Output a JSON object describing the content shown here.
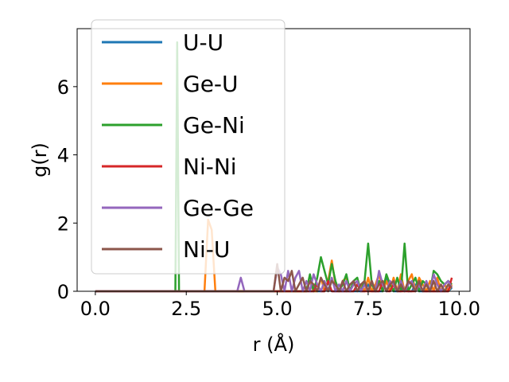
{
  "chart_data": {
    "type": "line",
    "xlabel": "r (Å)",
    "ylabel": "g(r)",
    "xlim": [
      -0.5,
      10.3
    ],
    "ylim": [
      0,
      7.7
    ],
    "xticks": [
      0.0,
      2.5,
      5.0,
      7.5,
      10.0
    ],
    "xtick_labels": [
      "0.0",
      "2.5",
      "5.0",
      "7.5",
      "10.0"
    ],
    "yticks": [
      0,
      2,
      4,
      6
    ],
    "ytick_labels": [
      "0",
      "2",
      "4",
      "6"
    ],
    "legend_position": "upper-left",
    "grid": false,
    "x": [
      0.0,
      0.5,
      1.0,
      1.5,
      2.0,
      2.1,
      2.2,
      2.25,
      2.3,
      2.4,
      2.5,
      2.6,
      2.7,
      2.8,
      2.9,
      3.0,
      3.1,
      3.2,
      3.3,
      3.4,
      3.5,
      3.6,
      3.7,
      3.8,
      3.9,
      4.0,
      4.1,
      4.2,
      4.3,
      4.4,
      4.5,
      4.6,
      4.7,
      4.8,
      4.9,
      5.0,
      5.1,
      5.2,
      5.3,
      5.4,
      5.5,
      5.6,
      5.7,
      5.8,
      5.9,
      6.0,
      6.1,
      6.2,
      6.3,
      6.4,
      6.5,
      6.6,
      6.7,
      6.8,
      6.9,
      7.0,
      7.1,
      7.2,
      7.3,
      7.4,
      7.5,
      7.6,
      7.7,
      7.8,
      7.9,
      8.0,
      8.1,
      8.2,
      8.3,
      8.4,
      8.5,
      8.6,
      8.7,
      8.8,
      8.9,
      9.0,
      9.1,
      9.2,
      9.3,
      9.4,
      9.5,
      9.6,
      9.7,
      9.8
    ],
    "series": [
      {
        "name": "U-U",
        "color": "#1f77b4",
        "values": [
          0,
          0,
          0,
          0,
          0,
          0,
          0,
          0,
          0,
          0,
          0,
          0,
          0,
          0,
          0,
          0,
          0,
          0,
          0,
          0,
          0,
          0,
          0,
          0,
          0,
          0,
          0,
          0,
          0,
          0,
          0,
          0,
          0,
          0,
          0,
          0,
          0,
          0,
          0,
          0,
          0,
          0,
          0,
          0,
          0,
          0,
          0,
          0,
          0,
          0.1,
          0,
          0,
          0,
          0,
          0,
          0,
          0,
          0,
          0,
          0,
          0.2,
          0,
          0,
          0,
          0,
          0.4,
          0.2,
          0,
          0,
          0,
          0.1,
          0,
          0,
          0.2,
          0,
          0,
          0,
          0,
          0,
          0,
          0,
          0,
          0,
          0.1
        ]
      },
      {
        "name": "Ge-U",
        "color": "#ff7f0e",
        "values": [
          0,
          0,
          0,
          0,
          0,
          0,
          0,
          0,
          0,
          0,
          0,
          0,
          0,
          0,
          0,
          0,
          2.1,
          1.8,
          0,
          0,
          0,
          0,
          0,
          0,
          0,
          0,
          0,
          0,
          0,
          0,
          0,
          0,
          0,
          0,
          0,
          0,
          0,
          0,
          0,
          0,
          0,
          0,
          0,
          0,
          0.3,
          0,
          0,
          0.4,
          0,
          0.3,
          0.9,
          0.2,
          0,
          0.3,
          0.4,
          0,
          0.3,
          0,
          0.2,
          0,
          0.4,
          0,
          0.2,
          0.5,
          0,
          0.3,
          0,
          0.4,
          0,
          0.5,
          0,
          0.3,
          0.5,
          0,
          0.4,
          0.2,
          0,
          0.3,
          0,
          0.4,
          0,
          0.2,
          0,
          0.2
        ]
      },
      {
        "name": "Ge-Ni",
        "color": "#2ca02c",
        "values": [
          0,
          0,
          0,
          0,
          0,
          0,
          0,
          7.3,
          0,
          0,
          0,
          0,
          0,
          0,
          0,
          0,
          0,
          0,
          0,
          0,
          0,
          0,
          0,
          0,
          0,
          0,
          0,
          0,
          0,
          0,
          0,
          0,
          0,
          0,
          0,
          0,
          0,
          0,
          0,
          0,
          0,
          0,
          0,
          0,
          0.5,
          0,
          0.4,
          1.0,
          0.6,
          0.2,
          0.8,
          0.3,
          0,
          0.2,
          0.5,
          0,
          0.3,
          0.4,
          0,
          0.3,
          1.4,
          0.2,
          0,
          0.3,
          0,
          0.5,
          0.2,
          0,
          0.4,
          0,
          1.4,
          0,
          0.2,
          0.4,
          0,
          0.3,
          0.2,
          0,
          0.6,
          0.5,
          0.3,
          0.2,
          0.3,
          0.2
        ]
      },
      {
        "name": "Ni-Ni",
        "color": "#d62728",
        "values": [
          0,
          0,
          0,
          0,
          0,
          0,
          0,
          0,
          0,
          0,
          0,
          0,
          0,
          0,
          0,
          0,
          0,
          0,
          0,
          0,
          0,
          0,
          0,
          0,
          0,
          0,
          0,
          0,
          0,
          0,
          0,
          0,
          0,
          0,
          0,
          0,
          0,
          0,
          0,
          0,
          0,
          0,
          0,
          0,
          0,
          0,
          0.2,
          0,
          0,
          0.3,
          0,
          0,
          0,
          0,
          0,
          0,
          0,
          0.2,
          0,
          0,
          0,
          0,
          0,
          0,
          0.3,
          0,
          0,
          0.2,
          0,
          0,
          0,
          0,
          0,
          0,
          0.2,
          0,
          0,
          0,
          0,
          0,
          0,
          0,
          0,
          0.4
        ]
      },
      {
        "name": "Ge-Ge",
        "color": "#9467bd",
        "values": [
          0,
          0,
          0,
          0,
          0,
          0,
          0,
          0,
          0,
          0,
          0,
          0,
          0,
          0,
          0,
          0,
          0,
          0,
          0,
          0,
          0,
          0,
          0,
          0,
          0,
          0.4,
          0,
          0,
          0,
          0,
          0,
          0,
          0,
          0,
          0,
          0.7,
          0.5,
          0,
          0.6,
          0,
          0.4,
          0.6,
          0,
          0.3,
          0,
          0.5,
          0.2,
          0,
          0.3,
          0,
          0.4,
          0,
          0.2,
          0,
          0.3,
          0,
          0.2,
          0.3,
          0,
          0.2,
          0,
          0.3,
          0,
          0.6,
          0.2,
          0,
          0.3,
          0.2,
          0,
          0.3,
          0,
          0.2,
          0.3,
          0,
          0.2,
          0,
          0.3,
          0,
          0.5,
          0.2,
          0,
          0.2,
          0.3,
          0.1
        ]
      },
      {
        "name": "Ni-U",
        "color": "#8c564b",
        "values": [
          0,
          0,
          0,
          0,
          0,
          0,
          0,
          0,
          0,
          0,
          0,
          0,
          0,
          0,
          0,
          0,
          0,
          0,
          0,
          0,
          0,
          0,
          0,
          0,
          0,
          0,
          0,
          0,
          0,
          0,
          0,
          0,
          0,
          0,
          0,
          0.8,
          0,
          0.4,
          0.3,
          0.6,
          0,
          0.2,
          0.4,
          0,
          0.3,
          0.2,
          0,
          0.4,
          0.2,
          0,
          0.3,
          0.2,
          0,
          0.3,
          0,
          0.2,
          0.3,
          0,
          0.2,
          0.3,
          0,
          0.3,
          0,
          0.2,
          0.3,
          0,
          0.2,
          0.3,
          0,
          0.2,
          0,
          0.3,
          0.2,
          0,
          0.3,
          0,
          0.2,
          0,
          0.3,
          0,
          0.2,
          0,
          0.2,
          0.1
        ]
      }
    ]
  }
}
